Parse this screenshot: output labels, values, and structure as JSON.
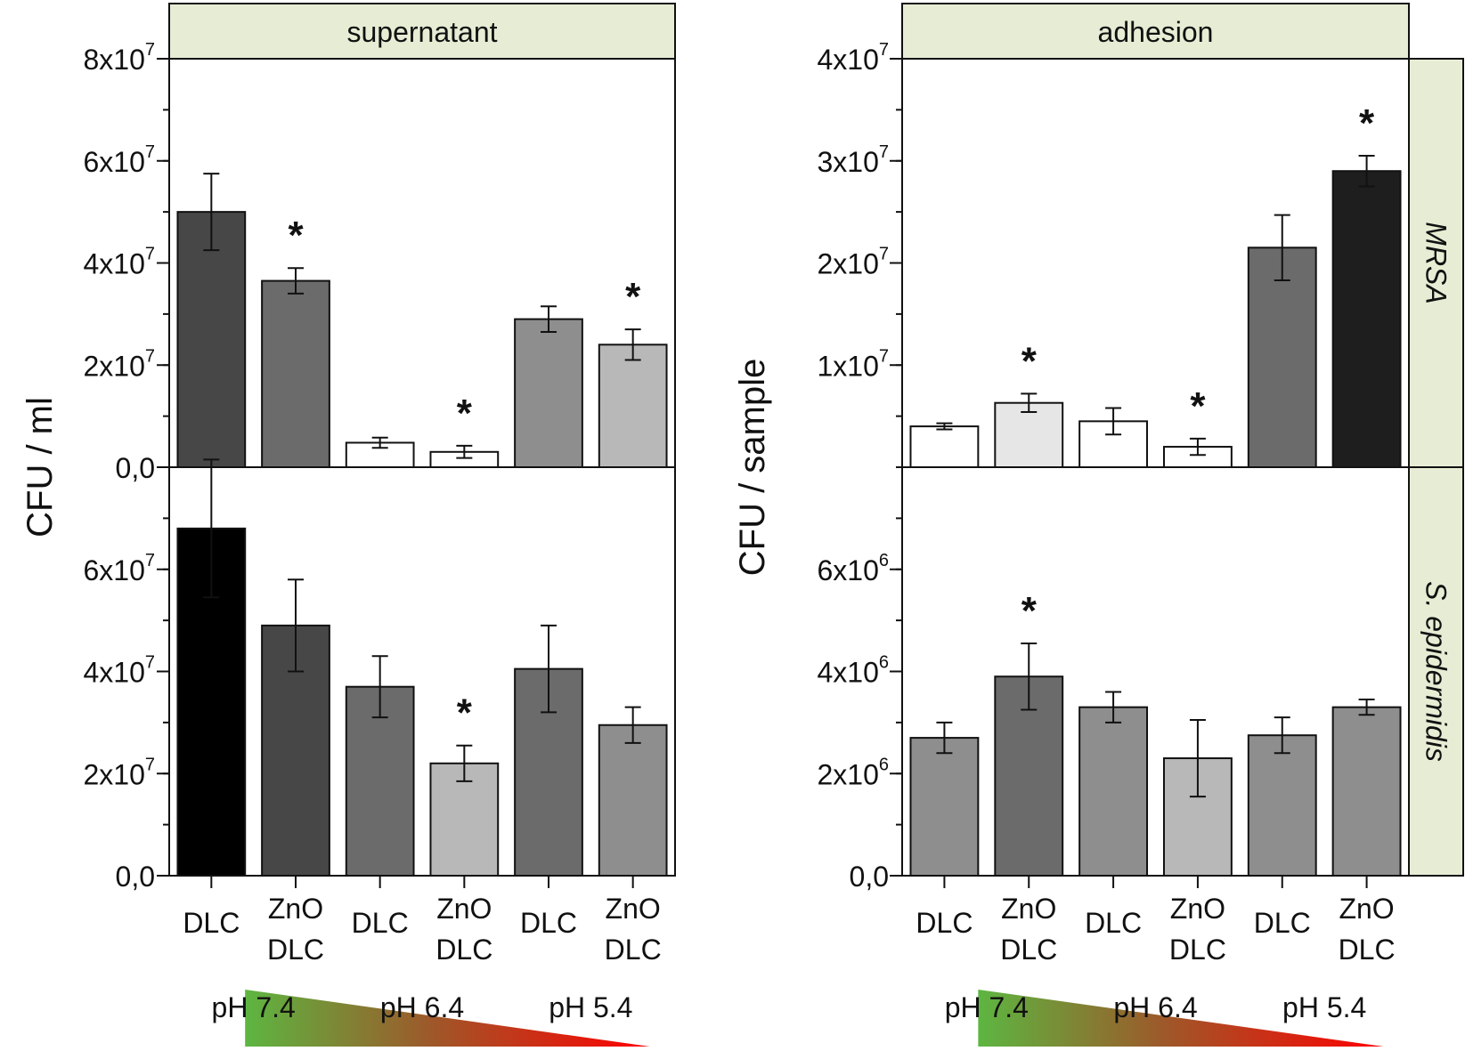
{
  "chart_data": [
    {
      "type": "bar",
      "title": "supernatant",
      "ylabel": "CFU / ml",
      "categories": [
        {
          "line1": "DLC",
          "line2": ""
        },
        {
          "line1": "ZnO",
          "line2": "DLC"
        },
        {
          "line1": "DLC",
          "line2": ""
        },
        {
          "line1": "ZnO",
          "line2": "DLC"
        },
        {
          "line1": "DLC",
          "line2": ""
        },
        {
          "line1": "ZnO",
          "line2": "DLC"
        }
      ],
      "ph_labels": [
        "pH 7.4",
        "pH 6.4",
        "pH 5.4"
      ],
      "panels": [
        {
          "name": "MRSA",
          "ylim": [
            0,
            80000000
          ],
          "ticks": [
            {
              "value": 0,
              "mantissa": "0,0",
              "exp": ""
            },
            {
              "value": 20000000,
              "mantissa": "2x10",
              "exp": "7"
            },
            {
              "value": 40000000,
              "mantissa": "4x10",
              "exp": "7"
            },
            {
              "value": 60000000,
              "mantissa": "6x10",
              "exp": "7"
            },
            {
              "value": 80000000,
              "mantissa": "8x10",
              "exp": "7"
            }
          ],
          "values": [
            50000000,
            36500000,
            4800000,
            3000000,
            29000000,
            24000000
          ],
          "errors": [
            7500000,
            2500000,
            1000000,
            1200000,
            2500000,
            3000000
          ],
          "colors": [
            "#474747",
            "#6b6b6b",
            "#ffffff",
            "#ffffff",
            "#8e8e8e",
            "#b8b8b8"
          ],
          "significant": [
            false,
            true,
            false,
            true,
            false,
            true
          ]
        },
        {
          "name": "S. epidermidis",
          "ylim": [
            0,
            80000000
          ],
          "ticks": [
            {
              "value": 0,
              "mantissa": "0,0",
              "exp": ""
            },
            {
              "value": 20000000,
              "mantissa": "2x10",
              "exp": "7"
            },
            {
              "value": 40000000,
              "mantissa": "4x10",
              "exp": "7"
            },
            {
              "value": 60000000,
              "mantissa": "6x10",
              "exp": "7"
            }
          ],
          "values": [
            68000000,
            49000000,
            37000000,
            22000000,
            40500000,
            29500000
          ],
          "errors": [
            13500000,
            9000000,
            6000000,
            3500000,
            8500000,
            3500000
          ],
          "colors": [
            "#000000",
            "#474747",
            "#6b6b6b",
            "#b8b8b8",
            "#6b6b6b",
            "#8e8e8e"
          ],
          "significant": [
            false,
            false,
            false,
            true,
            false,
            false
          ]
        }
      ]
    },
    {
      "type": "bar",
      "title": "adhesion",
      "ylabel": "CFU / sample",
      "categories": [
        {
          "line1": "DLC",
          "line2": ""
        },
        {
          "line1": "ZnO",
          "line2": "DLC"
        },
        {
          "line1": "DLC",
          "line2": ""
        },
        {
          "line1": "ZnO",
          "line2": "DLC"
        },
        {
          "line1": "DLC",
          "line2": ""
        },
        {
          "line1": "ZnO",
          "line2": "DLC"
        }
      ],
      "ph_labels": [
        "pH 7.4",
        "pH 6.4",
        "pH 5.4"
      ],
      "panels": [
        {
          "name": "MRSA",
          "ylim": [
            0,
            40000000
          ],
          "ticks": [
            {
              "value": 10000000,
              "mantissa": "1x10",
              "exp": "7"
            },
            {
              "value": 20000000,
              "mantissa": "2x10",
              "exp": "7"
            },
            {
              "value": 30000000,
              "mantissa": "3x10",
              "exp": "7"
            },
            {
              "value": 40000000,
              "mantissa": "4x10",
              "exp": "7"
            }
          ],
          "values": [
            4000000,
            6300000,
            4500000,
            2000000,
            21500000,
            29000000
          ],
          "errors": [
            300000,
            900000,
            1300000,
            800000,
            3200000,
            1500000
          ],
          "colors": [
            "#ffffff",
            "#e6e6e6",
            "#ffffff",
            "#ffffff",
            "#6b6b6b",
            "#1e1e1e"
          ],
          "significant": [
            false,
            true,
            false,
            true,
            false,
            true
          ]
        },
        {
          "name": "S. epidermidis",
          "ylim": [
            0,
            8000000
          ],
          "ticks": [
            {
              "value": 0,
              "mantissa": "0,0",
              "exp": ""
            },
            {
              "value": 2000000,
              "mantissa": "2x10",
              "exp": "6"
            },
            {
              "value": 4000000,
              "mantissa": "4x10",
              "exp": "6"
            },
            {
              "value": 6000000,
              "mantissa": "6x10",
              "exp": "6"
            }
          ],
          "values": [
            2700000,
            3900000,
            3300000,
            2300000,
            2750000,
            3300000
          ],
          "errors": [
            300000,
            650000,
            300000,
            750000,
            350000,
            150000
          ],
          "colors": [
            "#8e8e8e",
            "#6b6b6b",
            "#8e8e8e",
            "#b8b8b8",
            "#8e8e8e",
            "#8e8e8e"
          ],
          "significant": [
            false,
            true,
            false,
            false,
            false,
            false
          ]
        }
      ]
    }
  ],
  "significance_marker": "*",
  "colors": {
    "strip_fill": "#e6edd4",
    "gradient_start": "#5db641",
    "gradient_end": "#ff0000"
  }
}
